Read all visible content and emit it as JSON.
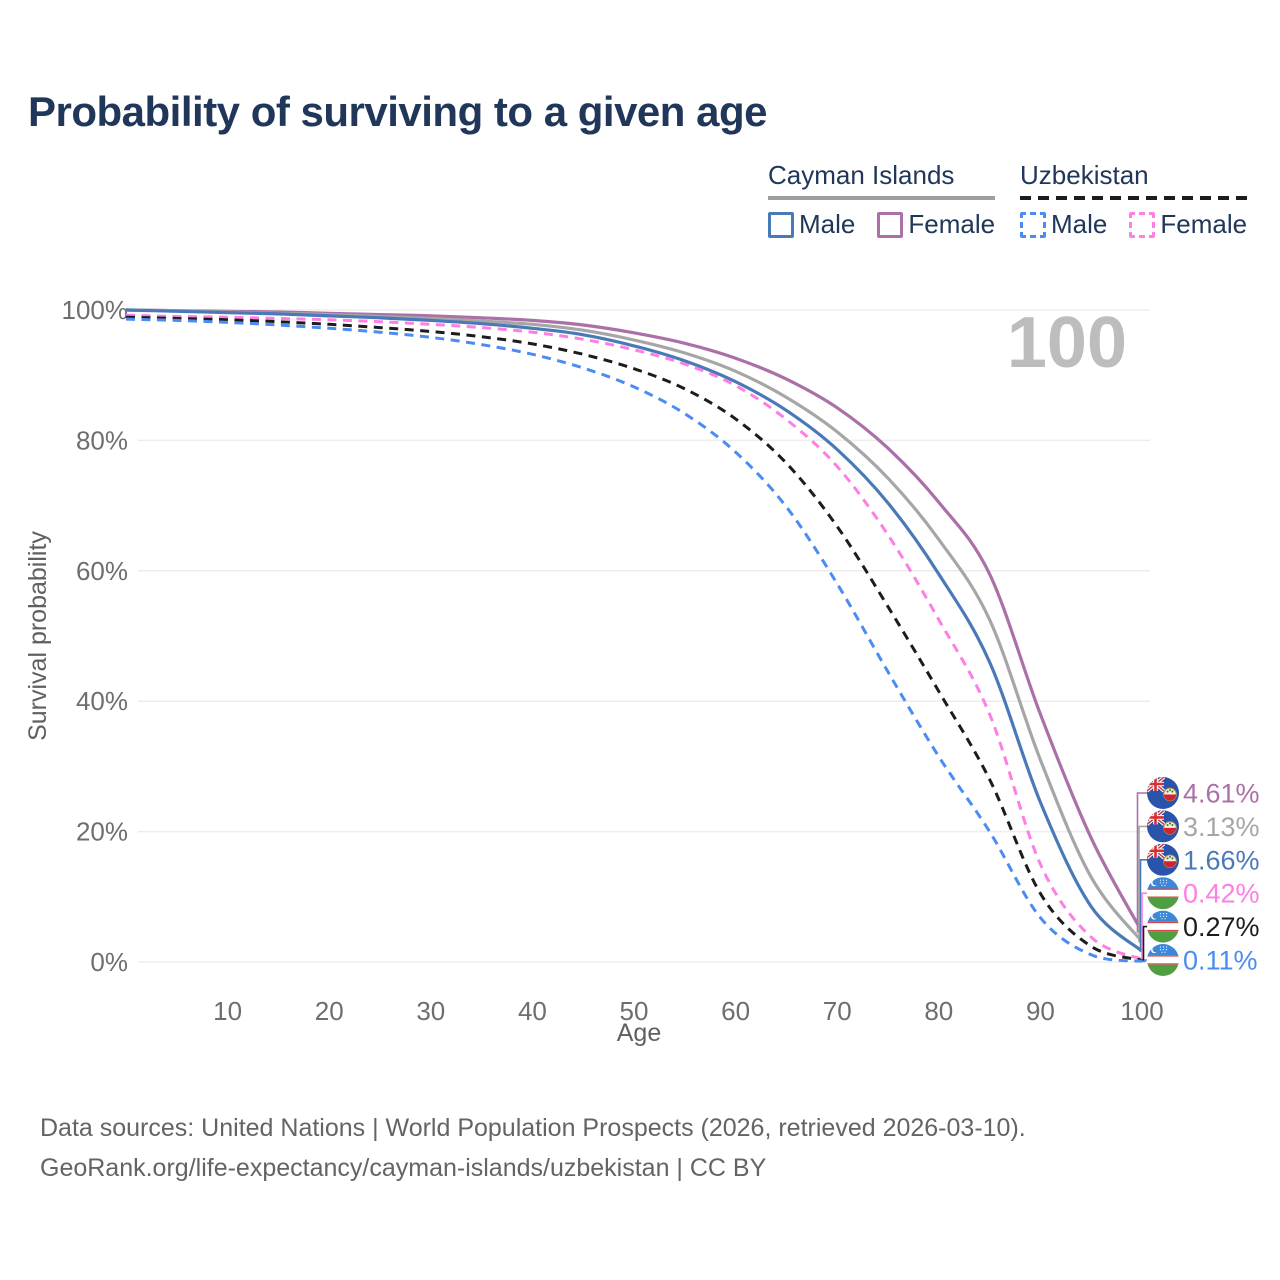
{
  "title": "Probability of surviving to a given age",
  "watermark": "100",
  "legend": {
    "groups": [
      {
        "title": "Cayman Islands",
        "underline": "solid",
        "underline_color": "#9e9e9e",
        "items": [
          {
            "label": "Male",
            "color": "#4a79b8",
            "dashed": false
          },
          {
            "label": "Female",
            "color": "#ab70a7",
            "dashed": false
          }
        ]
      },
      {
        "title": "Uzbekistan",
        "underline": "dashed",
        "underline_color": "#1c1c1c",
        "items": [
          {
            "label": "Male",
            "color": "#4a8cf2",
            "dashed": true
          },
          {
            "label": "Female",
            "color": "#ff7ee3",
            "dashed": true
          }
        ]
      }
    ]
  },
  "chart_data": {
    "type": "line",
    "title": "Probability of surviving to a given age",
    "x_label": "Age",
    "y_label": "Survival probability",
    "xlim": [
      0,
      100
    ],
    "ylim": [
      0,
      100
    ],
    "grid": true,
    "grid_color": "#ededed",
    "axis_text_color": "#6e6e6e",
    "x_ticks": [
      10,
      20,
      30,
      40,
      50,
      60,
      70,
      80,
      90,
      100
    ],
    "y_ticks": [
      {
        "value": 0,
        "label": "0%"
      },
      {
        "value": 20,
        "label": "20%"
      },
      {
        "value": 40,
        "label": "40%"
      },
      {
        "value": 60,
        "label": "60%"
      },
      {
        "value": 80,
        "label": "80%"
      },
      {
        "value": 100,
        "label": "100%"
      }
    ],
    "ages": [
      0,
      5,
      10,
      15,
      20,
      25,
      30,
      35,
      40,
      45,
      50,
      55,
      60,
      65,
      70,
      75,
      80,
      85,
      90,
      95,
      100
    ],
    "series": [
      {
        "name": "Cayman Islands — Female",
        "country": "Cayman Islands",
        "group_label": "Female",
        "color": "#ab70a7",
        "dashed": false,
        "flag": "cayman",
        "end_label": "4.61%",
        "end_value": 4.61,
        "values": [
          100,
          99.9,
          99.8,
          99.7,
          99.5,
          99.3,
          99.1,
          98.8,
          98.4,
          97.7,
          96.5,
          94.9,
          92.6,
          89.4,
          85.0,
          78.8,
          70.5,
          59.5,
          38.0,
          19.0,
          4.61
        ]
      },
      {
        "name": "Cayman Islands — Both sexes",
        "country": "Cayman Islands",
        "group_label": "Cayman Islands",
        "color": "#a6a6a6",
        "dashed": false,
        "flag": "cayman",
        "end_label": "3.13%",
        "end_value": 3.13,
        "values": [
          100,
          99.9,
          99.7,
          99.5,
          99.3,
          99.0,
          98.7,
          98.3,
          97.8,
          96.9,
          95.4,
          93.4,
          90.6,
          86.6,
          81.3,
          74.2,
          64.8,
          52.5,
          31.0,
          13.0,
          3.13
        ]
      },
      {
        "name": "Cayman Islands — Male",
        "country": "Cayman Islands",
        "group_label": "Male",
        "color": "#4a79b8",
        "dashed": false,
        "flag": "cayman",
        "end_label": "1.66%",
        "end_value": 1.66,
        "values": [
          100,
          99.8,
          99.6,
          99.4,
          99.1,
          98.8,
          98.4,
          97.9,
          97.2,
          96.2,
          94.5,
          92.2,
          89.0,
          84.6,
          78.6,
          70.4,
          59.5,
          46.0,
          24.5,
          8.5,
          1.66
        ]
      },
      {
        "name": "Uzbekistan — Female",
        "country": "Uzbekistan",
        "group_label": "Female",
        "color": "#ff7ee3",
        "dashed": true,
        "flag": "uzbekistan",
        "end_label": "0.42%",
        "end_value": 0.42,
        "values": [
          99.2,
          99.0,
          98.9,
          98.7,
          98.5,
          98.2,
          97.8,
          97.3,
          96.6,
          95.5,
          93.9,
          91.7,
          88.4,
          83.2,
          76.0,
          65.5,
          52.5,
          38.0,
          15.0,
          3.8,
          0.42
        ]
      },
      {
        "name": "Uzbekistan — Both sexes",
        "country": "Uzbekistan",
        "group_label": "Uzbekistan",
        "color": "#1c1c1c",
        "dashed": true,
        "flag": "uzbekistan",
        "end_label": "0.27%",
        "end_value": 0.27,
        "values": [
          98.9,
          98.7,
          98.5,
          98.2,
          97.8,
          97.3,
          96.7,
          95.9,
          94.8,
          93.2,
          91.0,
          87.9,
          83.3,
          76.5,
          66.8,
          54.5,
          41.5,
          28.0,
          10.5,
          2.4,
          0.27
        ]
      },
      {
        "name": "Uzbekistan — Male",
        "country": "Uzbekistan",
        "group_label": "Male",
        "color": "#4a8cf2",
        "dashed": true,
        "flag": "uzbekistan",
        "end_label": "0.11%",
        "end_value": 0.11,
        "values": [
          98.6,
          98.4,
          98.1,
          97.7,
          97.2,
          96.6,
          95.8,
          94.7,
          93.2,
          91.1,
          88.2,
          84.1,
          78.2,
          69.8,
          58.0,
          44.5,
          31.5,
          20.0,
          6.8,
          1.1,
          0.11
        ]
      }
    ]
  },
  "footer": {
    "line1": "Data sources: United Nations | World Population Prospects (2026, retrieved 2026-03-10).",
    "line2": "GeoRank.org/life-expectancy/cayman-islands/uzbekistan | CC BY"
  }
}
